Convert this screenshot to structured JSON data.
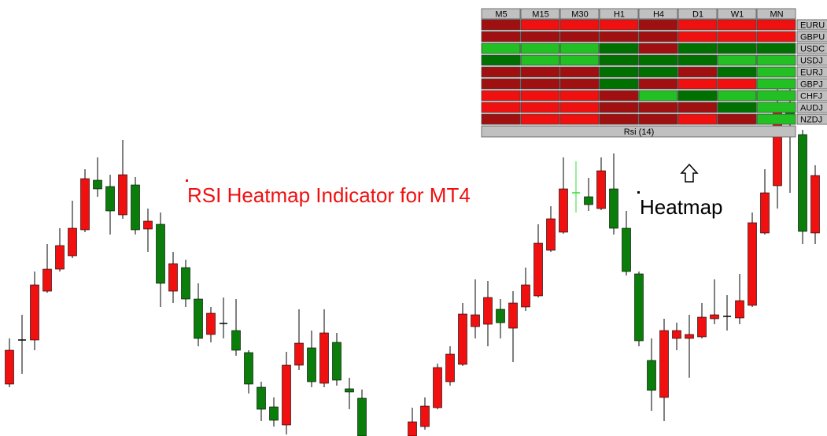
{
  "heatmap": {
    "columns": [
      "M5",
      "M15",
      "M30",
      "H1",
      "H4",
      "D1",
      "W1",
      "MN"
    ],
    "rows": [
      {
        "label": "EURU",
        "cells": [
          "#a01010",
          "#f01010",
          "#f01010",
          "#f01010",
          "#a01010",
          "#f01010",
          "#f01010",
          "#f01010"
        ]
      },
      {
        "label": "GBPU",
        "cells": [
          "#a01010",
          "#a01010",
          "#a01010",
          "#a01010",
          "#a01010",
          "#f01010",
          "#f01010",
          "#f01010"
        ]
      },
      {
        "label": "USDC",
        "cells": [
          "#22c022",
          "#22c022",
          "#22c022",
          "#007000",
          "#a01010",
          "#007000",
          "#007000",
          "#007000"
        ]
      },
      {
        "label": "USDJ",
        "cells": [
          "#007000",
          "#22c022",
          "#22c022",
          "#007000",
          "#007000",
          "#007000",
          "#22c022",
          "#22c022"
        ]
      },
      {
        "label": "EURJ",
        "cells": [
          "#a01010",
          "#a01010",
          "#a01010",
          "#007000",
          "#007000",
          "#a01010",
          "#007000",
          "#22c022"
        ]
      },
      {
        "label": "GBPJ",
        "cells": [
          "#a01010",
          "#a01010",
          "#a01010",
          "#007000",
          "#a01010",
          "#f01010",
          "#f01010",
          "#22c022"
        ]
      },
      {
        "label": "CHFJ",
        "cells": [
          "#f01010",
          "#f01010",
          "#f01010",
          "#a01010",
          "#22c022",
          "#007000",
          "#22c022",
          "#22c022"
        ]
      },
      {
        "label": "AUDJ",
        "cells": [
          "#f01010",
          "#f01010",
          "#f01010",
          "#a01010",
          "#a01010",
          "#a01010",
          "#007000",
          "#22c022"
        ]
      },
      {
        "label": "NZDJ",
        "cells": [
          "#a01010",
          "#f01010",
          "#f01010",
          "#a01010",
          "#a01010",
          "#f01010",
          "#a01010",
          "#22c022"
        ]
      }
    ],
    "footer": "Rsi (14)"
  },
  "annotations": {
    "title": "RSI Heatmap Indicator for MT4",
    "pointer": "Heatmap"
  }
}
